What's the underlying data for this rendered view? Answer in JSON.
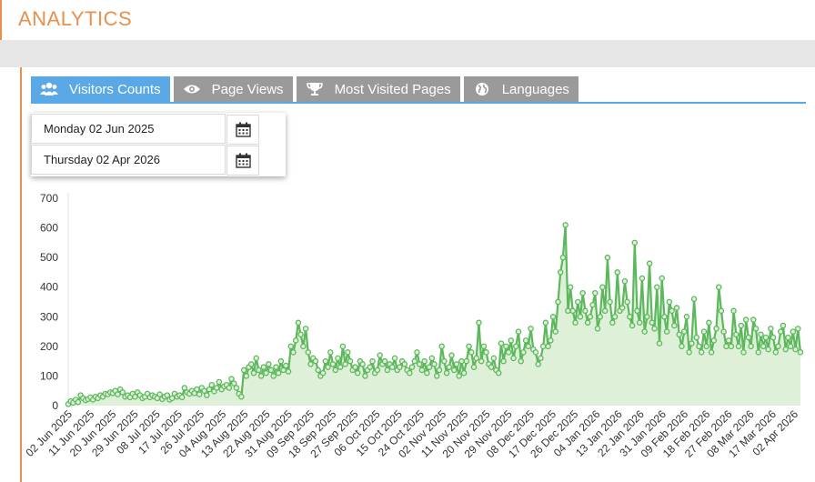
{
  "header": {
    "title": "ANALYTICS"
  },
  "tabs": [
    {
      "label": "Visitors Counts",
      "icon": "users-icon",
      "active": true
    },
    {
      "label": "Page Views",
      "icon": "eye-icon",
      "active": false
    },
    {
      "label": "Most Visited Pages",
      "icon": "trophy-icon",
      "active": false
    },
    {
      "label": "Languages",
      "icon": "globe-icon",
      "active": false
    }
  ],
  "date_range": {
    "start": "Monday 02 Jun 2025",
    "end": "Thursday 02 Apr 2026",
    "icon": "calendar-icon"
  },
  "colors": {
    "accent": "#e8914f",
    "tab_active": "#5aa9e6",
    "tab_inactive": "#9a9a9a",
    "line": "#5cb85c",
    "area": "#dff0d8"
  },
  "chart_data": {
    "type": "area",
    "title": "",
    "xlabel": "",
    "ylabel": "",
    "ylim": [
      0,
      700
    ],
    "y_ticks": [
      0,
      100,
      200,
      300,
      400,
      500,
      600,
      700
    ],
    "x_tick_labels": [
      "02 Jun 2025",
      "11 Jun 2025",
      "20 Jun 2025",
      "29 Jun 2025",
      "08 Jul 2025",
      "17 Jul 2025",
      "26 Jul 2025",
      "04 Aug 2025",
      "13 Aug 2025",
      "22 Aug 2025",
      "31 Aug 2025",
      "09 Sep 2025",
      "18 Sep 2025",
      "27 Sep 2025",
      "06 Oct 2025",
      "15 Oct 2025",
      "24 Oct 2025",
      "02 Nov 2025",
      "11 Nov 2025",
      "20 Nov 2025",
      "29 Nov 2025",
      "08 Dec 2025",
      "17 Dec 2025",
      "26 Dec 2025",
      "04 Jan 2026",
      "13 Jan 2026",
      "22 Jan 2026",
      "31 Jan 2026",
      "09 Feb 2026",
      "18 Feb 2026",
      "27 Feb 2026",
      "08 Mar 2026",
      "17 Mar 2026",
      "02 Apr 2026"
    ],
    "series": [
      {
        "values": [
          5,
          15,
          10,
          20,
          12,
          35,
          25,
          18,
          22,
          28,
          20,
          30,
          25,
          35,
          30,
          40,
          38,
          45,
          42,
          50,
          38,
          55,
          45,
          30,
          35,
          28,
          40,
          30,
          45,
          35,
          25,
          30,
          40,
          28,
          35,
          30,
          25,
          38,
          22,
          30,
          35,
          20,
          25,
          40,
          30,
          35,
          28,
          60,
          45,
          40,
          50,
          42,
          55,
          38,
          60,
          50,
          35,
          55,
          70,
          48,
          60,
          80,
          55,
          65,
          70,
          60,
          90,
          75,
          60,
          40,
          30,
          120,
          100,
          130,
          140,
          110,
          160,
          120,
          100,
          130,
          110,
          140,
          120,
          100,
          130,
          110,
          150,
          120,
          135,
          115,
          200,
          180,
          220,
          280,
          240,
          200,
          260,
          180,
          140,
          160,
          150,
          120,
          100,
          110,
          150,
          130,
          180,
          140,
          120,
          160,
          130,
          200,
          140,
          180,
          150,
          120,
          130,
          110,
          150,
          140,
          100,
          120,
          130,
          150,
          110,
          120,
          170,
          140,
          150,
          120,
          140,
          130,
          160,
          120,
          130,
          150,
          140,
          120,
          110,
          130,
          150,
          180,
          140,
          120,
          150,
          110,
          130,
          160,
          140,
          100,
          120,
          200,
          150,
          110,
          130,
          170,
          120,
          140,
          100,
          150,
          110,
          150,
          200,
          180,
          130,
          160,
          280,
          150,
          200,
          180,
          140,
          130,
          160,
          120,
          110,
          210,
          150,
          200,
          180,
          220,
          160,
          200,
          250,
          150,
          180,
          220,
          200,
          260,
          190,
          180,
          140,
          160,
          200,
          280,
          200,
          220,
          300,
          250,
          350,
          450,
          500,
          610,
          320,
          400,
          320,
          280,
          350,
          300,
          380,
          320,
          280,
          300,
          340,
          380,
          260,
          300,
          400,
          320,
          500,
          350,
          280,
          300,
          450,
          320,
          330,
          420,
          350,
          300,
          270,
          550,
          320,
          280,
          430,
          250,
          300,
          480,
          280,
          260,
          400,
          210,
          430,
          300,
          250,
          350,
          320,
          270,
          330,
          240,
          200,
          250,
          300,
          180,
          210,
          360,
          230,
          200,
          180,
          250,
          200,
          280,
          180,
          220,
          260,
          400,
          320,
          250,
          200,
          220,
          200,
          320,
          240,
          200,
          270,
          180,
          290,
          230,
          200,
          290,
          260,
          180,
          240,
          200,
          230,
          190,
          260,
          230,
          180,
          200,
          250,
          270,
          190,
          230,
          200,
          250,
          190,
          260,
          180
        ]
      }
    ]
  }
}
